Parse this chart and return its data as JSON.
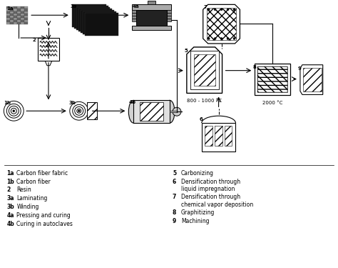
{
  "bg_color": "#ffffff",
  "legend_left": [
    [
      "1a",
      "Carbon fiber fabric"
    ],
    [
      "1b",
      "Carbon fiber"
    ],
    [
      "2",
      "Resin"
    ],
    [
      "3a",
      "Laminating"
    ],
    [
      "3b",
      "Winding"
    ],
    [
      "4a",
      "Pressing and curing"
    ],
    [
      "4b",
      "Curing in autoclaves"
    ]
  ],
  "legend_right": [
    [
      "5",
      "Carbonizing"
    ],
    [
      "6",
      "Densification through\nliquid impregnation"
    ],
    [
      "7",
      "Densification through\nchemical vapor deposition"
    ],
    [
      "8",
      "Graphitizing"
    ],
    [
      "9",
      "Machining"
    ]
  ],
  "temp1": "800 - 1000 °C",
  "temp2": "2000 °C"
}
